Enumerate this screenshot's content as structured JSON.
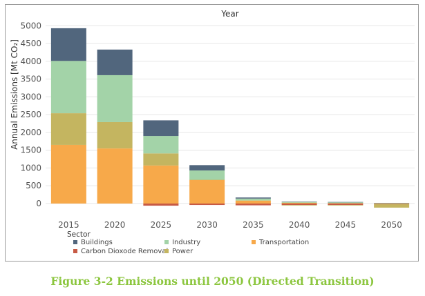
{
  "caption": "Figure 3-2 Emissions until 2050 (Directed Transition)",
  "chart_data": {
    "type": "bar",
    "stacked": true,
    "title": "Year",
    "ylabel": "Annual Emissions [Mt CO₂]",
    "xlabel": "",
    "ylim": [
      -150,
      5000
    ],
    "yticks": [
      0,
      500,
      1000,
      1500,
      2000,
      2500,
      3000,
      3500,
      4000,
      4500,
      5000
    ],
    "grid": true,
    "legend_title": "Sector",
    "legend_position": "bottom",
    "categories": [
      "2015",
      "2020",
      "2025",
      "2030",
      "2035",
      "2040",
      "2045",
      "2050"
    ],
    "series": [
      {
        "name": "Transportation",
        "color": "#f7a94a",
        "values": [
          1650,
          1550,
          1070,
          660,
          80,
          20,
          10,
          0
        ]
      },
      {
        "name": "Power",
        "color": "#c4b560",
        "values": [
          890,
          740,
          340,
          10,
          10,
          5,
          5,
          0
        ]
      },
      {
        "name": "Industry",
        "color": "#a3d3a8",
        "values": [
          1470,
          1320,
          490,
          260,
          50,
          20,
          20,
          20
        ]
      },
      {
        "name": "Buildings",
        "color": "#51667d",
        "values": [
          920,
          720,
          440,
          150,
          30,
          10,
          10,
          0
        ]
      },
      {
        "name": "Carbon Dioxode Removal",
        "color": "#c75a45",
        "values": [
          0,
          0,
          -60,
          -40,
          -50,
          -40,
          -40,
          -20
        ]
      }
    ],
    "negative_fill": {
      "color": "#c4b560",
      "values": [
        0,
        0,
        0,
        0,
        0,
        -15,
        -15,
        -95
      ]
    },
    "legend": [
      {
        "name": "Buildings",
        "color": "#51667d"
      },
      {
        "name": "Industry",
        "color": "#a3d3a8"
      },
      {
        "name": "Transportation",
        "color": "#f7a94a"
      },
      {
        "name": "Carbon Dioxode Removal",
        "color": "#c75a45"
      },
      {
        "name": "Power",
        "color": "#c4b560"
      }
    ]
  }
}
